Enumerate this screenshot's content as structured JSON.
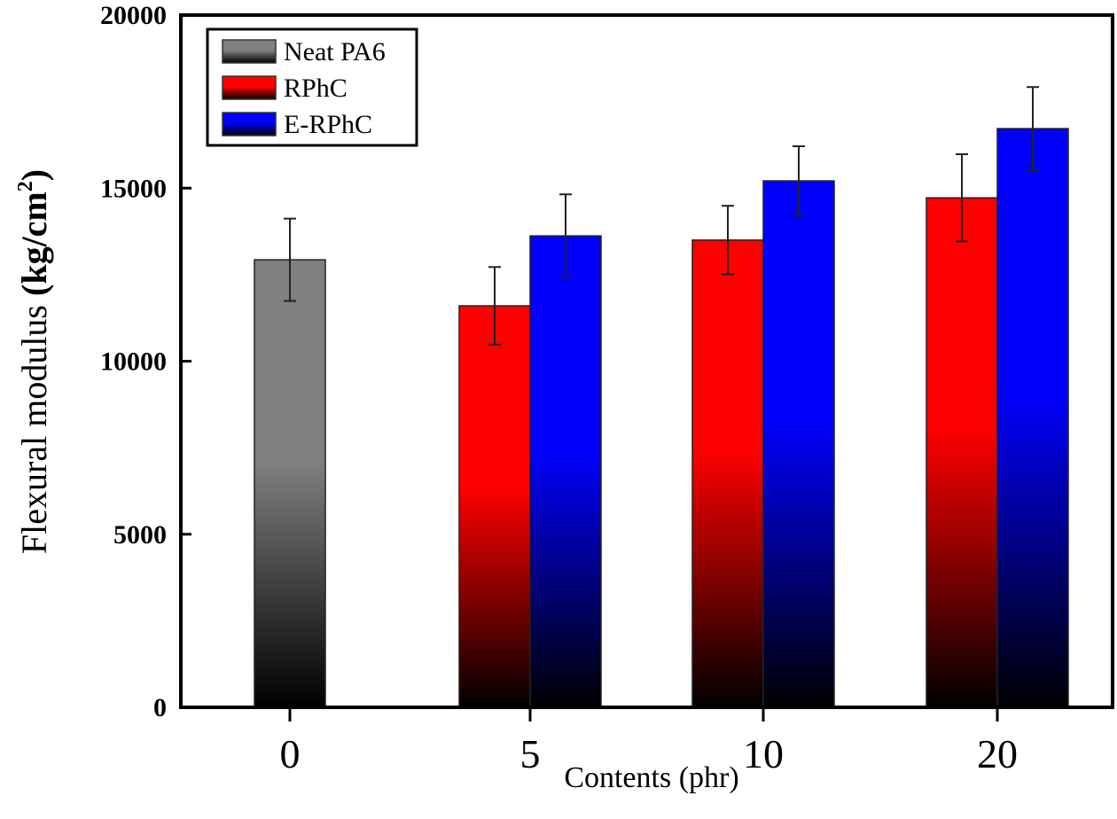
{
  "chart_data": {
    "type": "bar",
    "title": "",
    "xlabel": "Contents (phr)",
    "ylabel_main": "Flexural modulus ",
    "ylabel_bold": "(kg/cm",
    "ylabel_sup": "2",
    "ylabel_close": ")",
    "ylim": [
      0,
      20000
    ],
    "yticks": [
      0,
      5000,
      10000,
      15000,
      20000
    ],
    "ytick_labels": [
      "0",
      "5000",
      "10000",
      "15000",
      "20000"
    ],
    "categories": [
      "0",
      "5",
      "10",
      "20"
    ],
    "grid": false,
    "legend_position": "top-left",
    "series": [
      {
        "name": "Neat PA6",
        "color": "#808080",
        "values": [
          12930,
          null,
          null,
          null
        ],
        "errors": [
          1190,
          null,
          null,
          null
        ]
      },
      {
        "name": "RPhC",
        "color": "#ff0000",
        "values": [
          null,
          11600,
          13500,
          14720
        ],
        "errors": [
          null,
          1120,
          990,
          1260
        ]
      },
      {
        "name": "E-RPhC",
        "color": "#0000ff",
        "values": [
          null,
          13620,
          15210,
          16720
        ],
        "errors": [
          null,
          1200,
          1000,
          1200
        ]
      }
    ]
  }
}
